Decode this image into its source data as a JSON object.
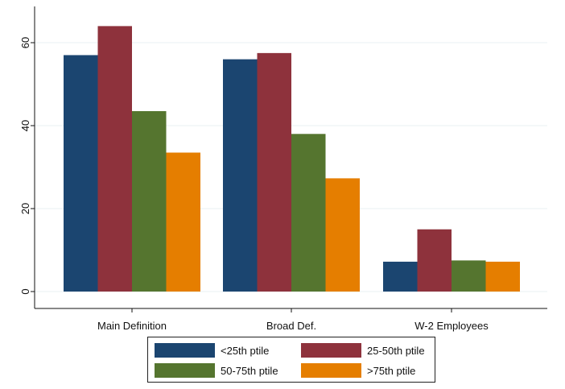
{
  "chart_data": {
    "type": "bar",
    "title": "",
    "xlabel": "",
    "ylabel": "",
    "categories": [
      "Main Definition",
      "Broad Def.",
      "W-2 Employees"
    ],
    "series": [
      {
        "name": "<25th ptile",
        "color": "#1b4570",
        "values": [
          57,
          56,
          7.2
        ]
      },
      {
        "name": "25-50th ptile",
        "color": "#8e323c",
        "values": [
          64,
          57.5,
          15
        ]
      },
      {
        "name": "50-75th ptile",
        "color": "#55752f",
        "values": [
          43.5,
          38,
          7.5
        ]
      },
      {
        "name": ">75th ptile",
        "color": "#e57e00",
        "values": [
          33.5,
          27.3,
          7.2
        ]
      }
    ],
    "ylim": [
      0,
      69
    ],
    "yticks": [
      0,
      20,
      40,
      60
    ],
    "grid": true,
    "legend_position": "bottom"
  }
}
